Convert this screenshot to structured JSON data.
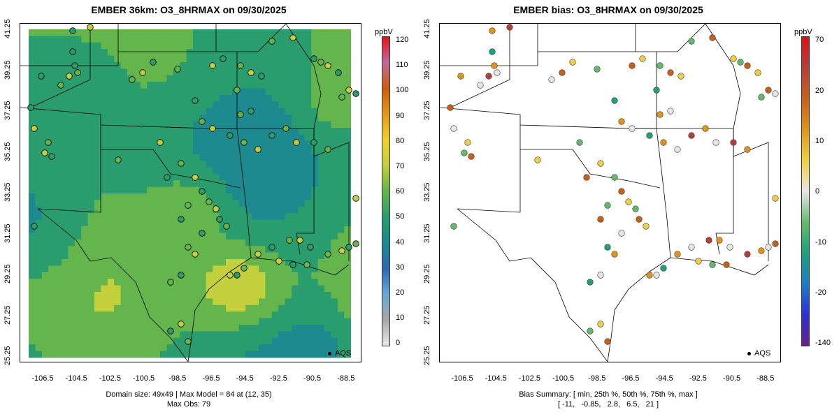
{
  "left_panel": {
    "title": "EMBER 36km: O3_8HRMAX on 09/30/2025",
    "units": "ppbV",
    "colorbar_ticks": [
      "120",
      "110",
      "100",
      "90",
      "80",
      "70",
      "60",
      "50",
      "40",
      "30",
      "20",
      "10",
      "0"
    ],
    "caption_line1": "Domain size: 49x49 | Max Model = 84 at (12, 35)",
    "caption_line2": "Max Obs: 79",
    "legend_label": "AQS"
  },
  "right_panel": {
    "title": "EMBER bias: O3_8HRMAX on 09/30/2025",
    "units": "ppbV",
    "colorbar_ticks": [
      "70",
      "20",
      "10",
      "0",
      "-10",
      "-20",
      "-140"
    ],
    "caption_line1": "Bias Summary: [ min, 25th %, 50th %, 75th %, max ]",
    "caption_line2": "[ -11,   -0.85,   2.8,   6.5,   21 ]",
    "legend_label": "AQS"
  },
  "axes": {
    "y_ticks": [
      "41.25",
      "39.25",
      "37.25",
      "35.25",
      "33.25",
      "31.25",
      "29.25",
      "27.25",
      "25.25"
    ],
    "x_ticks": [
      "-106.5",
      "-104.5",
      "-102.5",
      "-100.5",
      "-98.5",
      "-96.5",
      "-94.5",
      "-92.5",
      "-90.5",
      "-88.5"
    ]
  },
  "colors": {
    "model_scale": [
      "#e8e8e8",
      "#a8a8a8",
      "#6aa8d8",
      "#2f6ab0",
      "#1c8a8e",
      "#2a9d6f",
      "#63b54c",
      "#c4cf3c",
      "#f0d02a",
      "#e39a1a",
      "#cc5c10",
      "#c06a98",
      "#e8141e"
    ],
    "bias_scale": [
      "#6a1f8a",
      "#2a2fd8",
      "#1a7ec8",
      "#1ea07a",
      "#62bb6a",
      "#e6e6e6",
      "#f0d040",
      "#e0951a",
      "#c8601a",
      "#b5403a",
      "#e01010"
    ]
  }
}
